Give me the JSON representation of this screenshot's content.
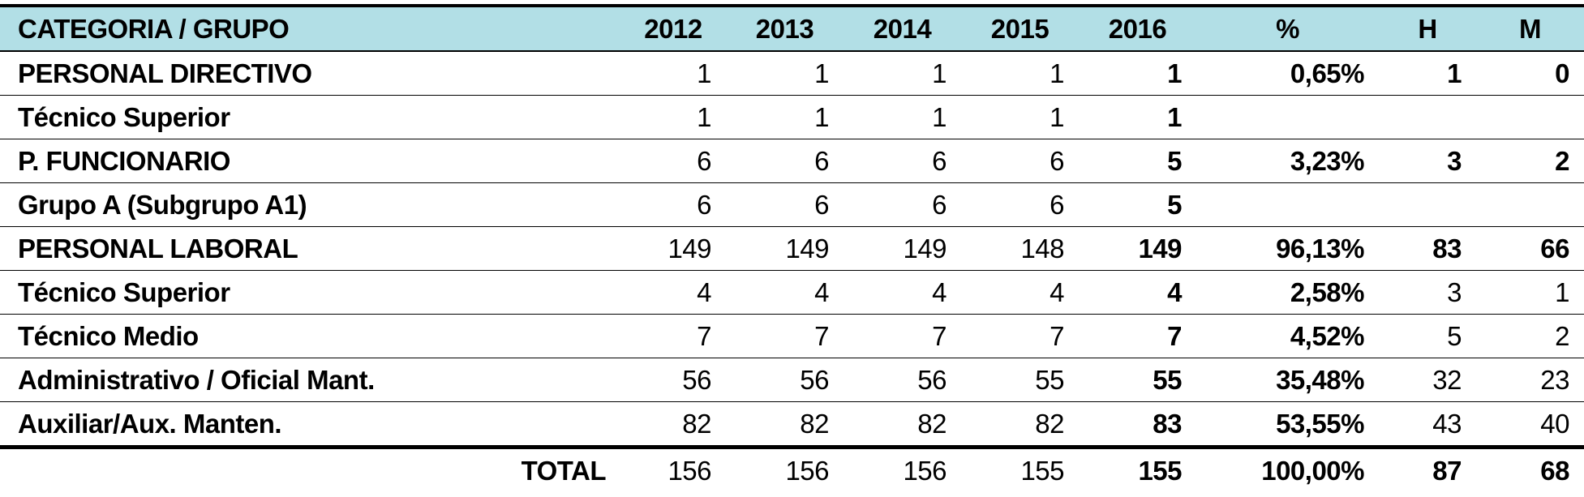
{
  "table": {
    "header": [
      "CATEGORIA  /  GRUPO",
      "2012",
      "2013",
      "2014",
      "2015",
      "2016",
      "%",
      "H",
      "M"
    ],
    "rows": [
      [
        "PERSONAL DIRECTIVO",
        "1",
        "1",
        "1",
        "1",
        "1",
        "0,65%",
        "1",
        "0"
      ],
      [
        "Técnico Superior",
        "1",
        "1",
        "1",
        "1",
        "1",
        null,
        null,
        null
      ],
      [
        "P. FUNCIONARIO",
        "6",
        "6",
        "6",
        "6",
        "5",
        "3,23%",
        "3",
        "2"
      ],
      [
        "Grupo A (Subgrupo A1)",
        "6",
        "6",
        "6",
        "6",
        "5",
        null,
        null,
        null
      ],
      [
        "PERSONAL LABORAL",
        "149",
        "149",
        "149",
        "148",
        "149",
        "96,13%",
        "83",
        "66"
      ],
      [
        "Técnico Superior",
        "4",
        "4",
        "4",
        "4",
        "4",
        "2,58%",
        "3",
        "1"
      ],
      [
        "Técnico Medio",
        "7",
        "7",
        "7",
        "7",
        "7",
        "4,52%",
        "5",
        "2"
      ],
      [
        "Administrativo / Oficial Mant.",
        "56",
        "56",
        "56",
        "55",
        "55",
        "35,48%",
        "32",
        "23"
      ],
      [
        "Auxiliar/Aux. Manten.",
        "82",
        "82",
        "82",
        "82",
        "83",
        "53,55%",
        "43",
        "40"
      ]
    ],
    "total": [
      "TOTAL",
      "156",
      "156",
      "156",
      "155",
      "155",
      "100,00%",
      "87",
      "68"
    ]
  }
}
